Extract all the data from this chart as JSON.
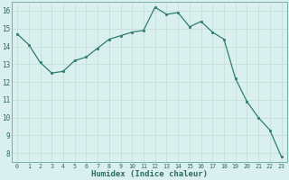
{
  "x": [
    0,
    1,
    2,
    3,
    4,
    5,
    6,
    7,
    8,
    9,
    10,
    11,
    12,
    13,
    14,
    15,
    16,
    17,
    18,
    19,
    20,
    21,
    22,
    23
  ],
  "y": [
    14.7,
    14.1,
    13.1,
    12.5,
    12.6,
    13.2,
    13.4,
    13.9,
    14.4,
    14.6,
    14.8,
    14.9,
    16.2,
    15.8,
    15.9,
    15.1,
    15.4,
    14.8,
    14.4,
    12.2,
    10.9,
    10.0,
    9.3,
    7.8
  ],
  "xlabel": "Humidex (Indice chaleur)",
  "line_color": "#2e7d6e",
  "marker_color": "#2e7d6e",
  "bg_color": "#d9f0ee",
  "grid_color_major": "#c8e0dc",
  "grid_color_minor": "#e2f4f2",
  "tick_label_color": "#2e6b5e",
  "ylim": [
    7.5,
    16.5
  ],
  "yticks": [
    8,
    9,
    10,
    11,
    12,
    13,
    14,
    15,
    16
  ],
  "xlim": [
    -0.5,
    23.5
  ],
  "xlabel_color": "#2e6b5e",
  "spine_color": "#7ab0a8"
}
